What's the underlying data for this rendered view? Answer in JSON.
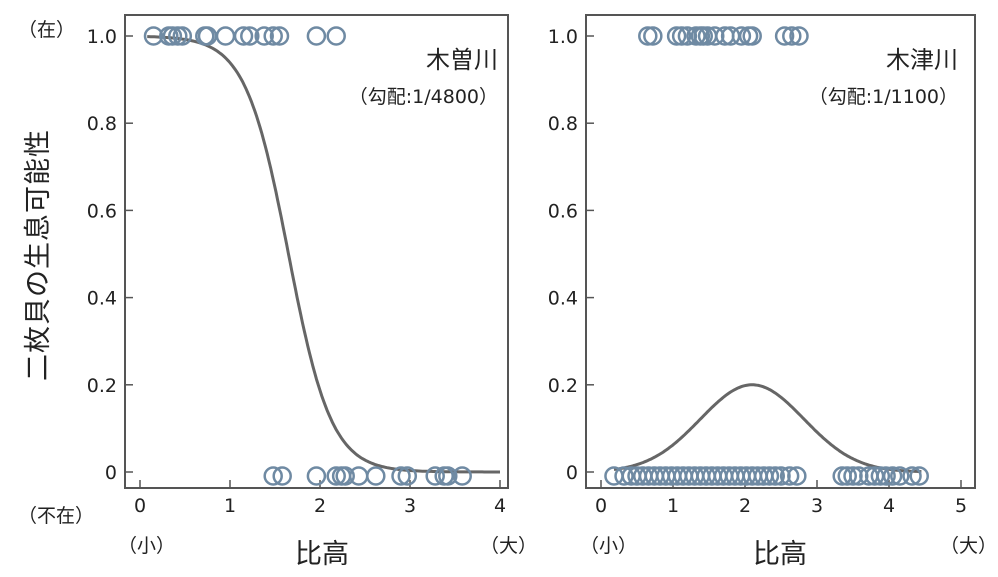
{
  "y_axis": {
    "label": "二枚貝の生息可能性",
    "present_label": "（在）",
    "absent_label": "（不在）"
  },
  "chart_data": [
    {
      "type": "scatter",
      "title": "木曽川",
      "subtitle": "（勾配:1/4800）",
      "xlabel": "比高",
      "x_low_label": "（小）",
      "x_high_label": "（大）",
      "xlim": [
        0,
        4
      ],
      "ylim": [
        0,
        1.0
      ],
      "xticks": [
        "0",
        "1",
        "2",
        "3",
        "4"
      ],
      "yticks": [
        "0",
        "0.2",
        "0.4",
        "0.6",
        "0.8",
        "1.0"
      ],
      "points_present_x": [
        0.15,
        0.32,
        0.36,
        0.42,
        0.47,
        0.72,
        0.75,
        0.95,
        1.15,
        1.22,
        1.38,
        1.48,
        1.55,
        1.96,
        2.18
      ],
      "points_absent_x": [
        1.48,
        1.58,
        1.96,
        2.18,
        2.24,
        2.28,
        2.43,
        2.62,
        2.9,
        2.97,
        3.28,
        3.38,
        3.42,
        3.58
      ],
      "fit_curve": {
        "type": "logistic_decreasing",
        "midpoint": 1.65,
        "slope": 4.2,
        "color": "#666666"
      },
      "marker_color": "#6f8aa3"
    },
    {
      "type": "scatter",
      "title": "木津川",
      "subtitle": "（勾配:1/1100）",
      "xlabel": "比高",
      "x_low_label": "（小）",
      "x_high_label": "（大）",
      "xlim": [
        0,
        5
      ],
      "ylim": [
        0,
        1.0
      ],
      "xticks": [
        "0",
        "1",
        "2",
        "3",
        "4",
        "5"
      ],
      "yticks": [
        "0",
        "0.2",
        "0.4",
        "0.6",
        "0.8",
        "1.0"
      ],
      "points_present_x": [
        0.65,
        0.72,
        1.05,
        1.12,
        1.2,
        1.32,
        1.38,
        1.42,
        1.48,
        1.58,
        1.72,
        1.8,
        1.95,
        2.05,
        2.1,
        2.55,
        2.65,
        2.75
      ],
      "points_absent_x": [
        0.18,
        0.32,
        0.42,
        0.5,
        0.58,
        0.66,
        0.74,
        0.82,
        0.9,
        0.98,
        1.06,
        1.14,
        1.22,
        1.3,
        1.38,
        1.46,
        1.54,
        1.62,
        1.7,
        1.78,
        1.86,
        1.94,
        2.02,
        2.1,
        2.18,
        2.26,
        2.34,
        2.42,
        2.5,
        2.62,
        2.72,
        3.35,
        3.42,
        3.5,
        3.58,
        3.72,
        3.8,
        3.88,
        3.96,
        4.05,
        4.15,
        4.32,
        4.42
      ],
      "fit_curve": {
        "type": "gaussian",
        "peak": 0.2,
        "center": 2.1,
        "sigma": 0.72,
        "color": "#666666"
      },
      "marker_color": "#6f8aa3"
    }
  ]
}
